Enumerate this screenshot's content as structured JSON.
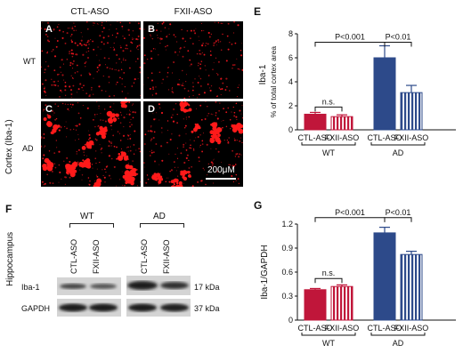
{
  "microscopy": {
    "column_labels": [
      "CTL-ASO",
      "FXII-ASO"
    ],
    "row_labels": [
      "WT",
      "AD"
    ],
    "side_label": "Cortex (Iba-1)",
    "panels": [
      "A",
      "B",
      "C",
      "D"
    ],
    "scale_label": "200μM"
  },
  "panel_e": {
    "letter": "E"
  },
  "panel_g": {
    "letter": "G"
  },
  "panel_f": {
    "letter": "F",
    "side_label": "Hippocampus",
    "groups": [
      "WT",
      "AD"
    ],
    "lanes": [
      "CTL-ASO",
      "FXII-ASO",
      "CTL-ASO",
      "FXII-ASO"
    ],
    "bands": [
      {
        "name": "Iba-1",
        "size": "17 kDa"
      },
      {
        "name": "GAPDH",
        "size": "37 kDa"
      }
    ]
  },
  "chart_data": [
    {
      "type": "bar",
      "panel": "E",
      "categories": [
        "CTL-ASO",
        "FXII-ASO",
        "CTL-ASO",
        "FXII-ASO"
      ],
      "groups": [
        "WT",
        "AD"
      ],
      "values": [
        1.3,
        1.1,
        6.0,
        3.1
      ],
      "errors": [
        0.15,
        0.15,
        1.0,
        0.6
      ],
      "ylabel_top": "Iba-1",
      "ylabel": "% of total cortex area",
      "ylim": [
        0,
        8
      ],
      "yticks": [
        "0",
        "2",
        "4",
        "6",
        "8"
      ],
      "annotations": [
        "n.s.",
        "P<0.001",
        "P<0.01"
      ],
      "colors": [
        "#c0163a",
        "#c0163a",
        "#2d4a8a",
        "#2d4a8a"
      ],
      "fill": [
        "solid",
        "striped",
        "solid",
        "striped"
      ]
    },
    {
      "type": "bar",
      "panel": "G",
      "categories": [
        "CTL-ASO",
        "FXII-ASO",
        "CTL-ASO",
        "FXII-ASO"
      ],
      "groups": [
        "WT",
        "AD"
      ],
      "values": [
        0.38,
        0.42,
        1.09,
        0.82
      ],
      "errors": [
        0.015,
        0.02,
        0.07,
        0.04
      ],
      "ylabel": "Iba-1/GAPDH",
      "ylim": [
        0,
        1.2
      ],
      "yticks": [
        "0",
        "0.3",
        "0.6",
        "0.9",
        "1.2"
      ],
      "annotations": [
        "n.s.",
        "P<0.001",
        "P<0.01"
      ],
      "colors": [
        "#c0163a",
        "#c0163a",
        "#2d4a8a",
        "#2d4a8a"
      ],
      "fill": [
        "solid",
        "striped",
        "solid",
        "striped"
      ]
    }
  ]
}
